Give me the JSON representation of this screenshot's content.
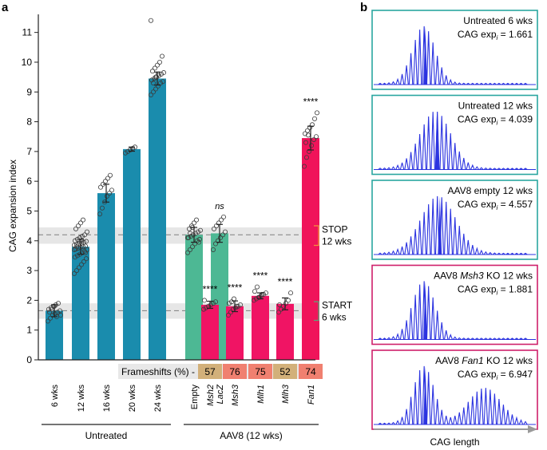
{
  "panel_labels": {
    "a": "a",
    "b": "b"
  },
  "colors": {
    "untreated": "#1a8cad",
    "control": "#4db894",
    "mmr": "#f01464",
    "fan1": "#f0145a",
    "band": "#e6e6e6",
    "trace": "#2b33e0",
    "frame_teal": "#2aa6a0",
    "frame_pink": "#cf1f6a",
    "frame_khaki": "#d2b07a",
    "frame_salmon": "#f08070",
    "stop_bracket": "#f0963c",
    "start_bracket": "#58a878"
  },
  "chart_data": [
    {
      "type": "bar",
      "title": "",
      "ylabel": "CAG expansion index",
      "xlabel": "",
      "ylim": [
        0,
        11.5
      ],
      "yticks": [
        "0",
        "1",
        "2",
        "3",
        "4",
        "5",
        "6",
        "7",
        "8",
        "9",
        "10",
        "11"
      ],
      "categories": [
        "6 wks",
        "12 wks",
        "16 wks",
        "20 wks",
        "24 wks",
        "Empty",
        "LacZ",
        "Msh2",
        "Msh3",
        "Mlh1",
        "Mlh3",
        "Fan1"
      ],
      "values": [
        1.65,
        3.8,
        5.6,
        7.08,
        9.45,
        4.2,
        4.25,
        1.85,
        1.8,
        2.15,
        1.88,
        7.45
      ],
      "errors": [
        0.2,
        0.25,
        0.3,
        0.07,
        0.22,
        0.25,
        0.3,
        0.12,
        0.18,
        0.1,
        0.2,
        0.4
      ],
      "group_of": [
        "u",
        "u",
        "u",
        "u",
        "u",
        "c",
        "c",
        "m",
        "m",
        "m",
        "m",
        "f"
      ],
      "significance": [
        "",
        "",
        "",
        "",
        "",
        "",
        "ns",
        "****",
        "****",
        "****",
        "****",
        "****"
      ],
      "dots": [
        [
          1.3,
          1.4,
          1.5,
          1.55,
          1.6,
          1.65,
          1.7,
          1.75,
          1.8,
          1.85,
          1.9,
          1.5,
          1.6,
          1.7,
          1.8,
          1.45
        ],
        [
          2.9,
          3.0,
          3.1,
          3.2,
          3.3,
          3.4,
          3.45,
          3.5,
          3.55,
          3.6,
          3.65,
          3.7,
          3.72,
          3.75,
          3.78,
          3.8,
          3.82,
          3.85,
          3.88,
          3.9,
          3.92,
          3.95,
          3.98,
          4.0,
          4.05,
          4.1,
          4.15,
          4.2,
          4.3,
          4.4,
          4.5,
          4.6,
          4.7,
          3.6,
          3.7,
          3.8,
          3.9,
          4.0
        ],
        [
          4.9,
          5.1,
          5.3,
          5.5,
          5.6,
          5.7,
          5.8,
          5.9,
          6.0,
          6.1,
          6.2
        ],
        [
          6.95,
          7.0,
          7.05,
          7.1,
          7.15
        ],
        [
          8.9,
          9.0,
          9.1,
          9.2,
          9.3,
          9.35,
          9.4,
          9.45,
          9.5,
          9.55,
          9.6,
          9.65,
          9.7,
          9.8,
          9.9,
          10.0,
          10.2,
          11.4,
          9.3,
          9.5,
          9.6
        ],
        [
          3.6,
          3.7,
          3.8,
          3.9,
          4.0,
          4.05,
          4.1,
          4.15,
          4.2,
          4.25,
          4.3,
          4.35,
          4.4,
          4.5,
          4.6,
          4.7,
          3.95,
          4.1,
          4.25,
          4.45
        ],
        [
          3.7,
          3.9,
          4.0,
          4.1,
          4.2,
          4.3,
          4.4,
          4.5,
          4.6,
          4.7,
          4.8
        ],
        [
          1.7,
          1.75,
          1.8,
          1.85,
          1.9,
          1.95,
          2.0
        ],
        [
          1.5,
          1.6,
          1.7,
          1.75,
          1.8,
          1.85,
          1.9,
          1.95,
          2.05,
          1.8
        ],
        [
          2.0,
          2.05,
          2.1,
          2.15,
          2.2,
          2.25,
          2.3,
          2.45,
          2.1,
          2.2
        ],
        [
          1.6,
          1.7,
          1.8,
          1.9,
          2.0,
          2.25,
          1.85
        ],
        [
          6.5,
          6.8,
          7.0,
          7.2,
          7.4,
          7.5,
          7.6,
          7.7,
          7.8,
          7.9,
          8.1,
          8.3,
          7.3,
          7.55
        ]
      ],
      "reference_lines": [
        {
          "label": "STOP",
          "sublabel": "12 wks",
          "y": 4.2,
          "band": [
            3.9,
            4.45
          ]
        },
        {
          "label": "START",
          "sublabel": "6 wks",
          "y": 1.65,
          "band": [
            1.38,
            1.9
          ]
        }
      ],
      "frameshifts_label": "Frameshifts (%) -",
      "frameshifts": [
        "57",
        "76",
        "75",
        "52",
        "74"
      ],
      "groups": [
        {
          "label": "Untreated"
        },
        {
          "label": "AAV8 (12 wks)"
        }
      ]
    },
    {
      "type": "line",
      "xlabel": "CAG length",
      "panels": [
        {
          "title": "Untreated 6 wks",
          "metric": "CAG exp",
          "sub": "i",
          "value": "= 1.661",
          "frame": "teal",
          "center": 0.3,
          "spread": 0.11,
          "shape": "single"
        },
        {
          "title": "Untreated 12 wks",
          "metric": "CAG exp",
          "sub": "i",
          "value": "= 4.039",
          "frame": "teal",
          "center": 0.38,
          "spread": 0.15,
          "shape": "single"
        },
        {
          "title": "AAV8 empty 12 wks",
          "metric": "CAG exp",
          "sub": "i",
          "value": "= 4.557",
          "frame": "teal",
          "center": 0.4,
          "spread": 0.17,
          "shape": "single"
        },
        {
          "title_pre": "AAV8 ",
          "title_em": "Msh3",
          "title_post": " KO 12 wks",
          "metric": "CAG exp",
          "sub": "i",
          "value": "= 1.881",
          "frame": "pink",
          "center": 0.3,
          "spread": 0.11,
          "shape": "single"
        },
        {
          "title_pre": "AAV8 ",
          "title_em": "Fan1",
          "title_post": " KO 12 wks",
          "metric": "CAG exp",
          "sub": "i",
          "value": "= 6.947",
          "frame": "pink",
          "center": 0.3,
          "spread": 0.1,
          "shape": "bimodal"
        }
      ]
    }
  ]
}
